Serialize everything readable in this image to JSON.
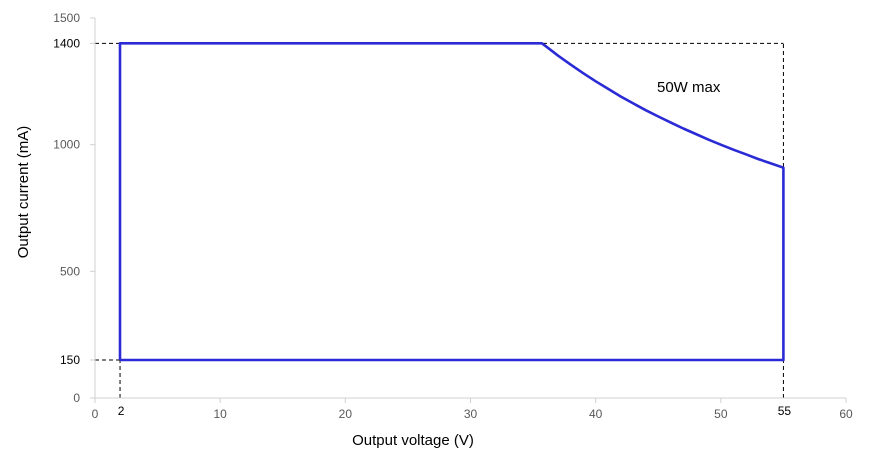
{
  "chart_data": {
    "type": "line",
    "xlabel": "Output voltage (V)",
    "ylabel": "Output current (mA)",
    "xlim": [
      0,
      60
    ],
    "ylim": [
      0,
      1500
    ],
    "x_ticks": [
      "0",
      "10",
      "20",
      "30",
      "40",
      "50",
      "60"
    ],
    "x_extra_ticks": [
      "2",
      "55"
    ],
    "y_ticks": [
      "0",
      "150",
      "500",
      "1000",
      "1400",
      "1500"
    ],
    "grid": false,
    "annotation": "50W max",
    "series": [
      {
        "color": "#2b2bd6",
        "x": [
          2,
          2,
          35.7,
          36,
          37,
          38,
          39,
          40,
          41,
          42,
          43,
          44,
          45,
          46,
          47,
          48,
          49,
          50,
          51,
          52,
          53,
          54,
          55,
          55,
          2
        ],
        "y": [
          150,
          1400,
          1400,
          1389,
          1351,
          1316,
          1282,
          1250,
          1220,
          1190,
          1163,
          1136,
          1111,
          1087,
          1064,
          1042,
          1020,
          1000,
          980,
          962,
          943,
          926,
          909,
          150,
          150
        ]
      }
    ],
    "reference_lines": [
      {
        "type": "horizontal",
        "y": 1400,
        "x_from": 0,
        "x_to": 55,
        "style": "dashed"
      },
      {
        "type": "horizontal",
        "y": 150,
        "x_from": 0,
        "x_to": 55,
        "style": "dashed"
      },
      {
        "type": "vertical",
        "x": 2,
        "y_from": 0,
        "y_to": 1400,
        "style": "dashed"
      },
      {
        "type": "vertical",
        "x": 55,
        "y_from": 0,
        "y_to": 1400,
        "style": "dashed"
      }
    ]
  }
}
